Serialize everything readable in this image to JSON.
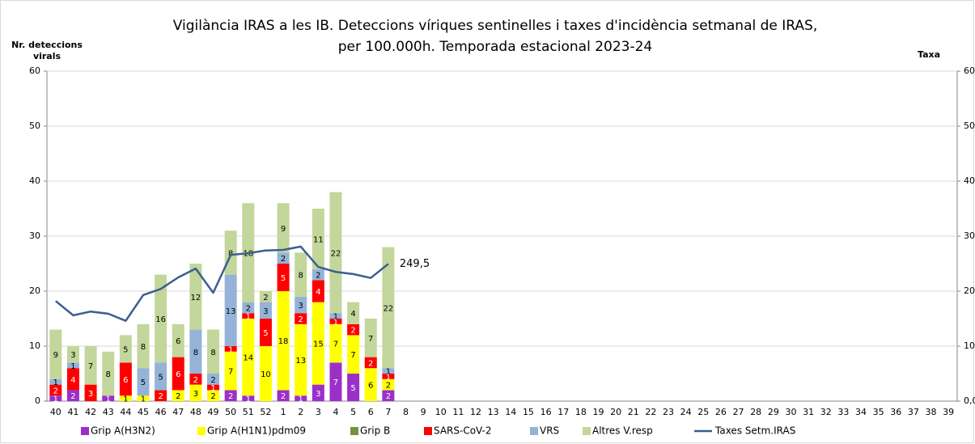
{
  "chart_data": {
    "type": "bar",
    "title": [
      "Vigilància IRAS  a les IB. Deteccions víriques sentinelles i taxes d'incidència setmanal de IRAS,",
      "per 100.000h. Temporada estacional 2023-24"
    ],
    "ylabel": [
      "Nr. deteccions",
      "virals"
    ],
    "y2label": "Taxa",
    "stacked": true,
    "categories": [
      "40",
      "41",
      "42",
      "43",
      "44",
      "45",
      "46",
      "47",
      "48",
      "49",
      "50",
      "51",
      "52",
      "1",
      "2",
      "3",
      "4",
      "5",
      "6",
      "7",
      "8",
      "9",
      "10",
      "11",
      "12",
      "13",
      "14",
      "15",
      "16",
      "17",
      "18",
      "19",
      "20",
      "21",
      "22",
      "23",
      "24",
      "25",
      "26",
      "27",
      "28",
      "29",
      "30",
      "31",
      "32",
      "33",
      "34",
      "35",
      "36",
      "37",
      "38",
      "39"
    ],
    "series": [
      {
        "name": "Grip A(H3N2)",
        "color": "#9b30c8",
        "values": [
          1,
          2,
          0,
          1,
          0,
          0,
          0,
          0,
          0,
          0,
          2,
          1,
          0,
          2,
          1,
          3,
          7,
          5,
          0,
          2,
          null,
          null,
          null,
          null,
          null,
          null,
          null,
          null,
          null,
          null,
          null,
          null,
          null,
          null,
          null,
          null,
          null,
          null,
          null,
          null,
          null,
          null,
          null,
          null,
          null,
          null,
          null,
          null,
          null,
          null,
          null,
          null
        ]
      },
      {
        "name": "Grip A(H1N1)pdm09",
        "color": "#ffff00",
        "values": [
          0,
          0,
          0,
          0,
          1,
          1,
          0,
          2,
          3,
          2,
          7,
          14,
          10,
          18,
          13,
          15,
          7,
          7,
          6,
          2,
          null,
          null,
          null,
          null,
          null,
          null,
          null,
          null,
          null,
          null,
          null,
          null,
          null,
          null,
          null,
          null,
          null,
          null,
          null,
          null,
          null,
          null,
          null,
          null,
          null,
          null,
          null,
          null,
          null,
          null,
          null,
          null
        ]
      },
      {
        "name": "Grip B",
        "color": "#77933c",
        "values": [
          0,
          0,
          0,
          0,
          0,
          0,
          0,
          0,
          0,
          0,
          0,
          0,
          0,
          0,
          0,
          0,
          0,
          0,
          0,
          0,
          null,
          null,
          null,
          null,
          null,
          null,
          null,
          null,
          null,
          null,
          null,
          null,
          null,
          null,
          null,
          null,
          null,
          null,
          null,
          null,
          null,
          null,
          null,
          null,
          null,
          null,
          null,
          null,
          null,
          null,
          null,
          null
        ]
      },
      {
        "name": "SARS-CoV-2",
        "color": "#ff0000",
        "values": [
          2,
          4,
          3,
          0,
          6,
          0,
          2,
          6,
          2,
          1,
          1,
          1,
          5,
          5,
          2,
          4,
          1,
          2,
          2,
          1,
          null,
          null,
          null,
          null,
          null,
          null,
          null,
          null,
          null,
          null,
          null,
          null,
          null,
          null,
          null,
          null,
          null,
          null,
          null,
          null,
          null,
          null,
          null,
          null,
          null,
          null,
          null,
          null,
          null,
          null,
          null,
          null
        ]
      },
      {
        "name": "VRS",
        "color": "#95b3d7",
        "values": [
          1,
          1,
          0,
          0,
          0,
          5,
          5,
          0,
          8,
          2,
          13,
          2,
          3,
          2,
          3,
          2,
          1,
          0,
          0,
          1,
          null,
          null,
          null,
          null,
          null,
          null,
          null,
          null,
          null,
          null,
          null,
          null,
          null,
          null,
          null,
          null,
          null,
          null,
          null,
          null,
          null,
          null,
          null,
          null,
          null,
          null,
          null,
          null,
          null,
          null,
          null,
          null
        ]
      },
      {
        "name": "Altres V.resp",
        "color": "#c3d69b",
        "values": [
          9,
          3,
          7,
          8,
          5,
          8,
          16,
          6,
          12,
          8,
          8,
          18,
          2,
          9,
          8,
          11,
          22,
          4,
          7,
          22,
          null,
          null,
          null,
          null,
          null,
          null,
          null,
          null,
          null,
          null,
          null,
          null,
          null,
          null,
          null,
          null,
          null,
          null,
          null,
          null,
          null,
          null,
          null,
          null,
          null,
          null,
          null,
          null,
          null,
          null,
          null,
          null
        ]
      },
      {
        "name": "Taxes Setm.IRAS",
        "color": "#3a5f8f",
        "axis": "y2",
        "values": [
          182,
          156,
          163,
          159,
          146,
          193,
          204,
          225,
          241,
          197,
          266,
          269,
          274,
          275,
          281,
          244,
          235,
          231,
          224,
          249.5,
          null,
          null,
          null,
          null,
          null,
          null,
          null,
          null,
          null,
          null,
          null,
          null,
          null,
          null,
          null,
          null,
          null,
          null,
          null,
          null,
          null,
          null,
          null,
          null,
          null,
          null,
          null,
          null,
          null,
          null,
          null,
          null
        ],
        "value_labels": [
          null,
          null,
          null,
          null,
          null,
          null,
          null,
          null,
          null,
          null,
          null,
          null,
          null,
          null,
          null,
          null,
          null,
          null,
          null,
          "249,5",
          null,
          null,
          null,
          null,
          null,
          null,
          null,
          null,
          null,
          null,
          null,
          null,
          null,
          null,
          null,
          null,
          null,
          null,
          null,
          null,
          null,
          null,
          null,
          null,
          null,
          null,
          null,
          null,
          null,
          null,
          null,
          null
        ]
      }
    ],
    "ylim": [
      0,
      60
    ],
    "yticks": [
      0,
      10,
      20,
      30,
      40,
      50,
      60
    ],
    "y2lim": [
      0,
      600
    ],
    "y2ticks": [
      {
        "value": 0,
        "label": "0,0"
      },
      {
        "value": 100,
        "label": "100,0"
      },
      {
        "value": 200,
        "label": "200,0"
      },
      {
        "value": 300,
        "label": "300,0"
      },
      {
        "value": 400,
        "label": "400,0"
      },
      {
        "value": 500,
        "label": "500,0"
      },
      {
        "value": 600,
        "label": "600,0"
      }
    ],
    "legend": "bottom"
  }
}
